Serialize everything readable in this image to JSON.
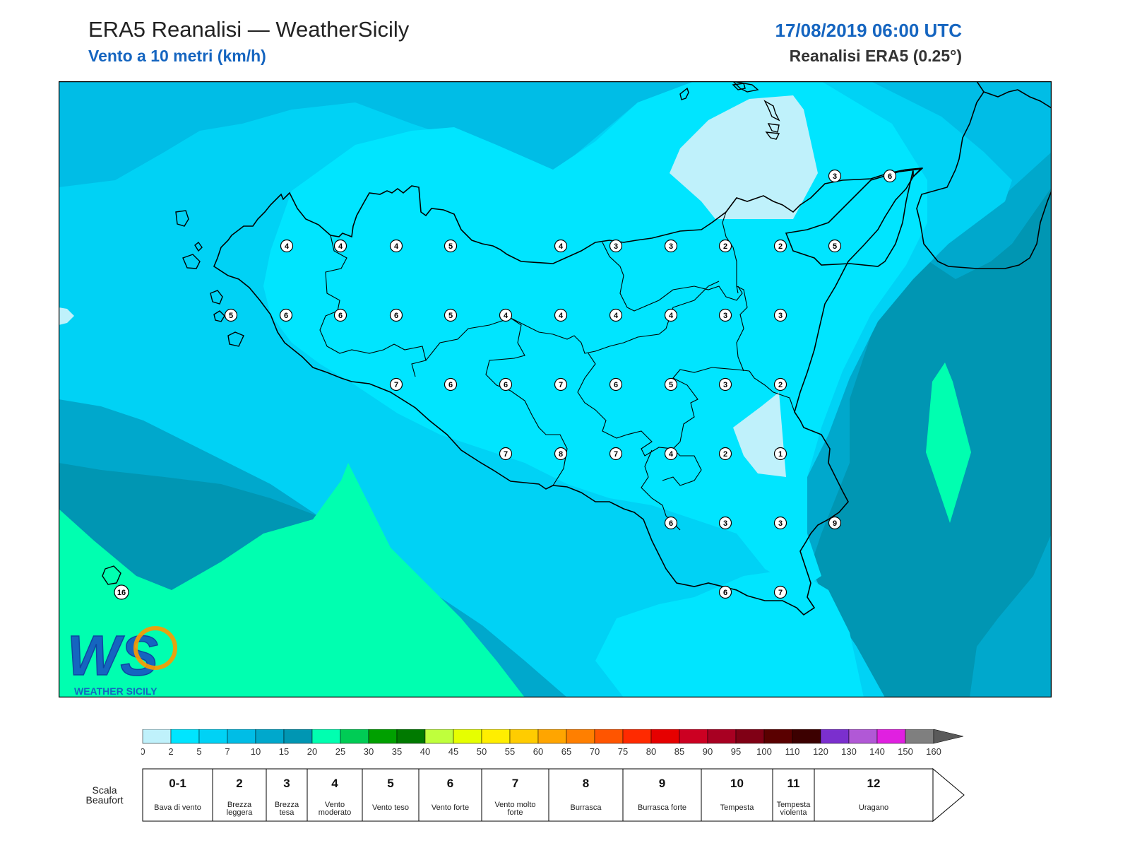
{
  "header": {
    "title": "ERA5 Reanalisi — WeatherSicily",
    "subtitle": "Vento a 10 metri (km/h)",
    "datetime": "17/08/2019 06:00 UTC",
    "source": "Reanalisi ERA5 (0.25°)"
  },
  "logo": {
    "letters": "WS",
    "name": "WEATHER SICILY"
  },
  "colors": {
    "sea_shallow": "#00a8cc",
    "accent_blue": "#1565c0",
    "coast": "#000000"
  },
  "wind_stations": [
    {
      "v": "3"
    },
    {
      "v": "6"
    },
    {
      "v": "4"
    },
    {
      "v": "4"
    },
    {
      "v": "4"
    },
    {
      "v": "5"
    },
    {
      "v": "4"
    },
    {
      "v": "3"
    },
    {
      "v": "3"
    },
    {
      "v": "2"
    },
    {
      "v": "2"
    },
    {
      "v": "5"
    },
    {
      "v": "5"
    },
    {
      "v": "6"
    },
    {
      "v": "6"
    },
    {
      "v": "6"
    },
    {
      "v": "5"
    },
    {
      "v": "4"
    },
    {
      "v": "4"
    },
    {
      "v": "4"
    },
    {
      "v": "4"
    },
    {
      "v": "3"
    },
    {
      "v": "3"
    },
    {
      "v": "7"
    },
    {
      "v": "6"
    },
    {
      "v": "6"
    },
    {
      "v": "7"
    },
    {
      "v": "6"
    },
    {
      "v": "5"
    },
    {
      "v": "3"
    },
    {
      "v": "2"
    },
    {
      "v": "7"
    },
    {
      "v": "8"
    },
    {
      "v": "7"
    },
    {
      "v": "4"
    },
    {
      "v": "2"
    },
    {
      "v": "1"
    },
    {
      "v": "6"
    },
    {
      "v": "3"
    },
    {
      "v": "3"
    },
    {
      "v": "9"
    },
    {
      "v": "6"
    },
    {
      "v": "7"
    },
    {
      "v": "16"
    }
  ],
  "colorbar": {
    "ticks": [
      "0",
      "2",
      "5",
      "7",
      "10",
      "15",
      "20",
      "25",
      "30",
      "35",
      "40",
      "45",
      "50",
      "55",
      "60",
      "65",
      "70",
      "75",
      "80",
      "85",
      "90",
      "95",
      "100",
      "110",
      "120",
      "130",
      "140",
      "150",
      "160"
    ],
    "colors": [
      "#bff1fb",
      "#00e5ff",
      "#00d2f5",
      "#00bde6",
      "#00a8cc",
      "#0096b3",
      "#00ffb0",
      "#00cc55",
      "#00a000",
      "#007a00",
      "#bfff3c",
      "#e6ff00",
      "#ffee00",
      "#ffcc00",
      "#ffa500",
      "#ff7f00",
      "#ff5500",
      "#ff2a00",
      "#e60000",
      "#cc0022",
      "#a80022",
      "#800015",
      "#5a0000",
      "#3c0000",
      "#7b2fce",
      "#b158d6",
      "#e020e0",
      "#7f7f7f",
      "#5a5a5a",
      "#000000",
      "#8b4a2b",
      "#cd8548"
    ]
  },
  "beaufort": {
    "label": "Scala Beaufort",
    "classes": [
      {
        "num": "0-1",
        "desc": "Bava di vento"
      },
      {
        "num": "2",
        "desc": "Brezza leggera"
      },
      {
        "num": "3",
        "desc": "Brezza tesa"
      },
      {
        "num": "4",
        "desc": "Vento moderato"
      },
      {
        "num": "5",
        "desc": "Vento teso"
      },
      {
        "num": "6",
        "desc": "Vento forte"
      },
      {
        "num": "7",
        "desc": "Vento molto forte"
      },
      {
        "num": "8",
        "desc": "Burrasca"
      },
      {
        "num": "9",
        "desc": "Burrasca forte"
      },
      {
        "num": "10",
        "desc": "Tempesta"
      },
      {
        "num": "11",
        "desc": "Tempesta violenta"
      },
      {
        "num": "12",
        "desc": "Uragano"
      }
    ]
  }
}
